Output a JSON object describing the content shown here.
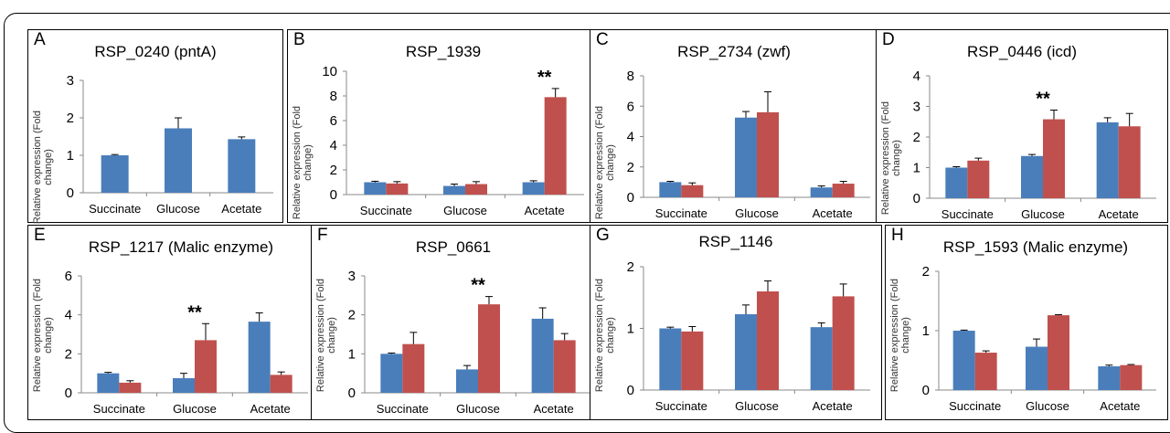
{
  "colors": {
    "series_blue": "#4a7ebb",
    "series_red": "#c0504d",
    "axis": "#888888"
  },
  "chart_data": [
    {
      "id": "A",
      "type": "bar",
      "title": "RSP_0240 (pntA)",
      "ylabel": "Relative expression (Fold change)",
      "categories": [
        "Succinate",
        "Glucose",
        "Acetate"
      ],
      "ylim": [
        0,
        3
      ],
      "yticks": [
        0,
        1,
        2,
        3
      ],
      "series": [
        {
          "values": [
            1.0,
            1.72,
            1.43
          ],
          "errors": [
            0.02,
            0.28,
            0.06
          ]
        }
      ],
      "annotations": []
    },
    {
      "id": "B",
      "type": "bar",
      "title": "RSP_1939",
      "ylabel": "Relative expression (Fold change)",
      "categories": [
        "Succinate",
        "Glucose",
        "Acetate"
      ],
      "ylim": [
        0,
        10
      ],
      "yticks": [
        0,
        2,
        4,
        6,
        8,
        10
      ],
      "series": [
        {
          "values": [
            1.0,
            0.7,
            1.0
          ],
          "errors": [
            0.08,
            0.15,
            0.12
          ]
        },
        {
          "values": [
            0.9,
            0.85,
            7.9
          ],
          "errors": [
            0.15,
            0.2,
            0.7
          ]
        }
      ],
      "annotations": [
        {
          "category": 2,
          "text": "**"
        }
      ]
    },
    {
      "id": "C",
      "type": "bar",
      "title": "RSP_2734 (zwf)",
      "ylabel": "Relative expression (Fold change)",
      "categories": [
        "Succinate",
        "Glucose",
        "Acetate"
      ],
      "ylim": [
        0,
        8
      ],
      "yticks": [
        0,
        2,
        4,
        6,
        8
      ],
      "series": [
        {
          "values": [
            1.0,
            5.25,
            0.65
          ],
          "errors": [
            0.05,
            0.4,
            0.1
          ]
        },
        {
          "values": [
            0.8,
            5.6,
            0.9
          ],
          "errors": [
            0.15,
            1.35,
            0.15
          ]
        }
      ],
      "annotations": []
    },
    {
      "id": "D",
      "type": "bar",
      "title": "RSP_0446 (icd)",
      "ylabel": "Relative expression (Fold change)",
      "categories": [
        "Succinate",
        "Glucose",
        "Acetate"
      ],
      "ylim": [
        0,
        4
      ],
      "yticks": [
        0,
        1,
        2,
        3,
        4
      ],
      "series": [
        {
          "values": [
            1.0,
            1.38,
            2.48
          ],
          "errors": [
            0.03,
            0.05,
            0.15
          ]
        },
        {
          "values": [
            1.23,
            2.58,
            2.35
          ],
          "errors": [
            0.08,
            0.3,
            0.42
          ]
        }
      ],
      "annotations": [
        {
          "category": 1,
          "text": "**"
        }
      ]
    },
    {
      "id": "E",
      "type": "bar",
      "title": "RSP_1217 (Malic enzyme)",
      "ylabel": "Relative expression (Fold change)",
      "categories": [
        "Succinate",
        "Glucose",
        "Acetate"
      ],
      "ylim": [
        0,
        6
      ],
      "yticks": [
        0,
        2,
        4,
        6
      ],
      "series": [
        {
          "values": [
            1.0,
            0.75,
            3.65
          ],
          "errors": [
            0.05,
            0.25,
            0.45
          ]
        },
        {
          "values": [
            0.52,
            2.7,
            0.92
          ],
          "errors": [
            0.1,
            0.85,
            0.15
          ]
        }
      ],
      "annotations": [
        {
          "category": 1,
          "text": "**"
        }
      ]
    },
    {
      "id": "F",
      "type": "bar",
      "title": "RSP_0661",
      "ylabel": "Relative expression (Fold change)",
      "categories": [
        "Succinate",
        "Glucose",
        "Acetate"
      ],
      "ylim": [
        0,
        3
      ],
      "yticks": [
        0,
        1,
        2,
        3
      ],
      "series": [
        {
          "values": [
            1.0,
            0.6,
            1.9
          ],
          "errors": [
            0.02,
            0.1,
            0.28
          ]
        },
        {
          "values": [
            1.25,
            2.27,
            1.35
          ],
          "errors": [
            0.3,
            0.2,
            0.17
          ]
        }
      ],
      "annotations": [
        {
          "category": 1,
          "text": "**"
        }
      ]
    },
    {
      "id": "G",
      "type": "bar",
      "title": "RSP_1146",
      "ylabel": "Relative expression (Fold change)",
      "categories": [
        "Succinate",
        "Glucose",
        "Acetate"
      ],
      "ylim": [
        0,
        2
      ],
      "yticks": [
        0,
        1,
        2
      ],
      "series": [
        {
          "values": [
            1.0,
            1.23,
            1.02
          ],
          "errors": [
            0.02,
            0.15,
            0.07
          ]
        },
        {
          "values": [
            0.95,
            1.6,
            1.52
          ],
          "errors": [
            0.08,
            0.17,
            0.2
          ]
        }
      ],
      "annotations": []
    },
    {
      "id": "H",
      "type": "bar",
      "title": "RSP_1593 (Malic enzyme)",
      "ylabel": "Relative expression (Fold change)",
      "categories": [
        "Succinate",
        "Glucose",
        "Acetate"
      ],
      "ylim": [
        0,
        2
      ],
      "yticks": [
        0,
        1,
        2
      ],
      "series": [
        {
          "values": [
            1.0,
            0.73,
            0.4
          ],
          "errors": [
            0.01,
            0.13,
            0.02
          ]
        },
        {
          "values": [
            0.63,
            1.26,
            0.42
          ],
          "errors": [
            0.03,
            0.01,
            0.01
          ]
        }
      ],
      "annotations": []
    }
  ]
}
